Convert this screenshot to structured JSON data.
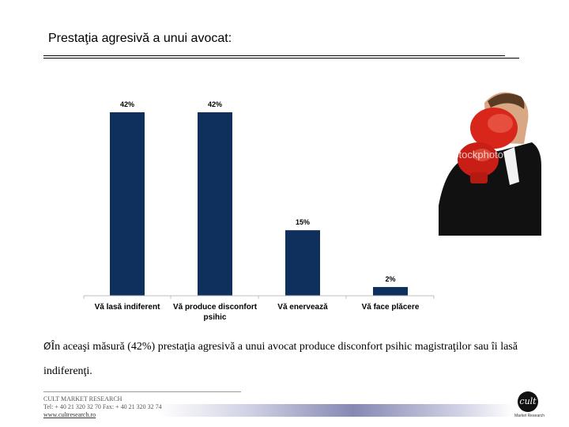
{
  "slide": {
    "title": "Prestaţia agresivă a unui avocat:",
    "conclusion_arrow": "Ø",
    "conclusion_text": "În aceaşi măsură (42%) prestaţia agresivă a unui avocat produce disconfort psihic magistraţilor sau îi lasă indiferenţi.",
    "photo_watermark": "iStockphoto",
    "logo_text": "cult",
    "logo_caption": "Market Research",
    "footer": {
      "company": "CULT MARKET RESEARCH",
      "contact": "Tel: + 40 21 320 32 70   Fax: + 40 21 320 32 74",
      "url": "www.cultresearch.ro"
    }
  },
  "chart_data": {
    "type": "bar",
    "categories": [
      "Vă lasă indiferent",
      "Vă produce disconfort psihic",
      "Vă enervează",
      "Vă face plăcere"
    ],
    "values": [
      42,
      42,
      15,
      2
    ],
    "value_labels": [
      "42%",
      "42%",
      "15%",
      "2%"
    ],
    "ylim": [
      0,
      42
    ],
    "grid": false,
    "bar_color": "#0f2f5c"
  }
}
